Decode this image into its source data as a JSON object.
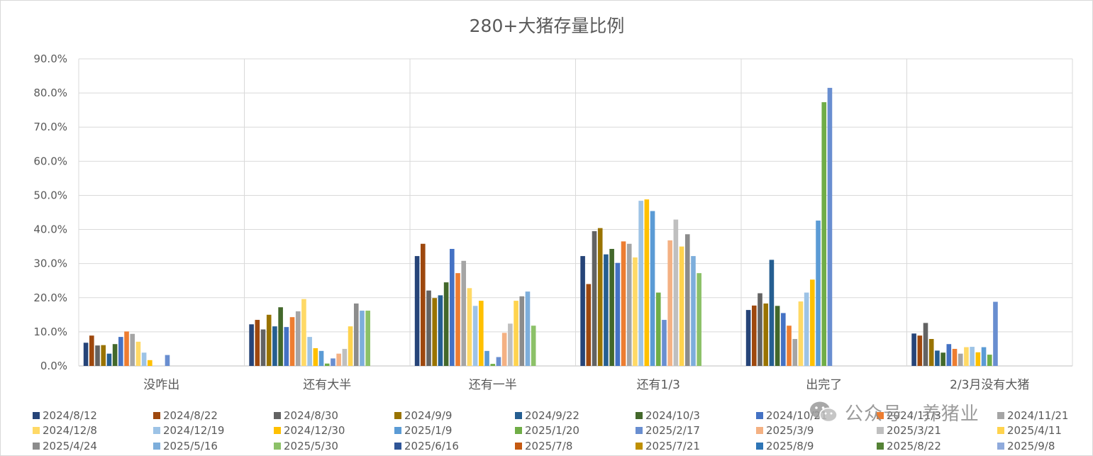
{
  "chart_data": {
    "type": "bar",
    "title": "280+大猪存量比例",
    "ylim": [
      0,
      0.9
    ],
    "yticks": [
      "0.0%",
      "10.0%",
      "20.0%",
      "30.0%",
      "40.0%",
      "50.0%",
      "60.0%",
      "70.0%",
      "80.0%",
      "90.0%"
    ],
    "grid": true,
    "legend_position": "bottom",
    "categories": [
      "没咋出",
      "还有大半",
      "还有一半",
      "还有1/3",
      "出完了",
      "2/3月没有大猪"
    ],
    "series": [
      {
        "name": "2024/8/12",
        "color": "#264478",
        "values": [
          0.068,
          0.122,
          0.322,
          0.322,
          0.164,
          0.095
        ]
      },
      {
        "name": "2024/8/22",
        "color": "#9E480E",
        "values": [
          0.089,
          0.135,
          0.358,
          0.24,
          0.177,
          0.089
        ]
      },
      {
        "name": "2024/8/30",
        "color": "#636363",
        "values": [
          0.06,
          0.107,
          0.221,
          0.395,
          0.213,
          0.126
        ]
      },
      {
        "name": "2024/9/9",
        "color": "#997300",
        "values": [
          0.061,
          0.15,
          0.199,
          0.404,
          0.183,
          0.079
        ]
      },
      {
        "name": "2024/9/22",
        "color": "#255E91",
        "values": [
          0.036,
          0.116,
          0.207,
          0.327,
          0.311,
          0.045
        ]
      },
      {
        "name": "2024/10/3",
        "color": "#43682B",
        "values": [
          0.064,
          0.172,
          0.245,
          0.343,
          0.176,
          0.039
        ]
      },
      {
        "name": "2024/10/21",
        "color": "#4472C4",
        "values": [
          0.085,
          0.114,
          0.343,
          0.302,
          0.155,
          0.064
        ]
      },
      {
        "name": "2024/11/3",
        "color": "#ED7D31",
        "values": [
          0.101,
          0.143,
          0.272,
          0.365,
          0.118,
          0.05
        ]
      },
      {
        "name": "2024/11/21",
        "color": "#A5A5A5",
        "values": [
          0.094,
          0.16,
          0.308,
          0.358,
          0.079,
          0.036
        ]
      },
      {
        "name": "2024/12/8",
        "color": "#FFD966",
        "values": [
          0.071,
          0.196,
          0.228,
          0.318,
          0.189,
          0.055
        ]
      },
      {
        "name": "2024/12/19",
        "color": "#9DC3E6",
        "values": [
          0.039,
          0.085,
          0.176,
          0.484,
          0.215,
          0.056
        ]
      },
      {
        "name": "2024/12/30",
        "color": "#FFC000",
        "values": [
          0.017,
          0.052,
          0.191,
          0.488,
          0.253,
          0.04
        ]
      },
      {
        "name": "2025/1/9",
        "color": "#5B9BD5",
        "values": [
          0.0,
          0.044,
          0.044,
          0.454,
          0.426,
          0.055
        ]
      },
      {
        "name": "2025/1/20",
        "color": "#70AD47",
        "values": [
          0.0,
          0.007,
          0.006,
          0.215,
          0.773,
          0.033
        ]
      },
      {
        "name": "2025/2/17",
        "color": "#698ED0",
        "values": [
          0.032,
          0.022,
          0.026,
          0.135,
          0.815,
          0.188
        ]
      },
      {
        "name": "2025/3/9",
        "color": "#F4B183",
        "values": [
          0.0,
          0.036,
          0.097,
          0.368,
          0.0,
          0.0
        ]
      },
      {
        "name": "2025/3/21",
        "color": "#BFBFBF",
        "values": [
          0.0,
          0.05,
          0.124,
          0.429,
          0.0,
          0.0
        ]
      },
      {
        "name": "2025/4/11",
        "color": "#FFD34D",
        "values": [
          0.0,
          0.116,
          0.191,
          0.35,
          0.0,
          0.0
        ]
      },
      {
        "name": "2025/4/24",
        "color": "#8C8C8C",
        "values": [
          0.0,
          0.183,
          0.204,
          0.386,
          0.0,
          0.0
        ]
      },
      {
        "name": "2025/5/16",
        "color": "#7DAEDB",
        "values": [
          0.0,
          0.162,
          0.218,
          0.322,
          0.0,
          0.0
        ]
      },
      {
        "name": "2025/5/30",
        "color": "#8CC168",
        "values": [
          0.0,
          0.162,
          0.118,
          0.272,
          0.0,
          0.0
        ]
      },
      {
        "name": "2025/6/16",
        "color": "#2F5597",
        "values": [
          0.0,
          0.0,
          0.0,
          0.0,
          0.0,
          0.0
        ]
      },
      {
        "name": "2025/7/8",
        "color": "#C55A11",
        "values": [
          0.0,
          0.0,
          0.0,
          0.0,
          0.0,
          0.0
        ]
      },
      {
        "name": "2025/7/21",
        "color": "#BF9000",
        "values": [
          0.0,
          0.0,
          0.0,
          0.0,
          0.0,
          0.0
        ]
      },
      {
        "name": "2025/8/9",
        "color": "#2E75B6",
        "values": [
          0.0,
          0.0,
          0.0,
          0.0,
          0.0,
          0.0
        ]
      },
      {
        "name": "2025/8/22",
        "color": "#548235",
        "values": [
          0.0,
          0.0,
          0.0,
          0.0,
          0.0,
          0.0
        ]
      },
      {
        "name": "2025/9/8",
        "color": "#8FAADC",
        "values": [
          0.0,
          0.0,
          0.0,
          0.0,
          0.0,
          0.0
        ]
      }
    ]
  },
  "watermark": {
    "text": "公众号 · 养猪业",
    "icon": "wechat-icon"
  }
}
